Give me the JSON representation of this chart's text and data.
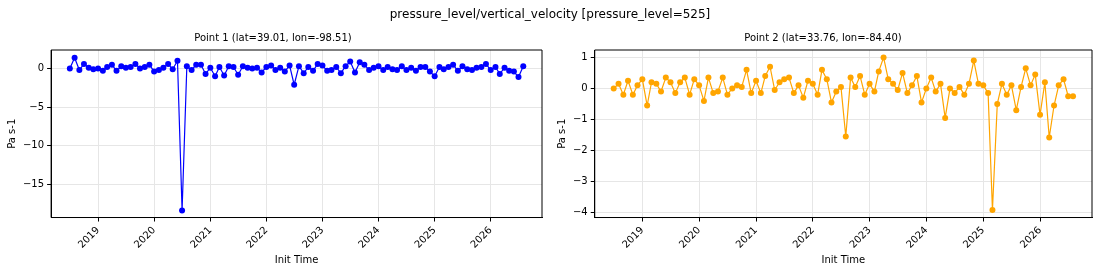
{
  "chart_data": [
    {
      "type": "line",
      "title": "Point 1 (lat=39.01, lon=-98.51)",
      "xlabel": "Init Time",
      "ylabel": "Pa s-1",
      "annotations": [
        "pressure_level/vertical_velocity [pressure_level=525]"
      ],
      "x": [
        "2018-07",
        "2018-08",
        "2018-09",
        "2018-10",
        "2018-11",
        "2018-12",
        "2019-01",
        "2019-02",
        "2019-03",
        "2019-04",
        "2019-05",
        "2019-06",
        "2019-07",
        "2019-08",
        "2019-09",
        "2019-10",
        "2019-11",
        "2019-12",
        "2020-01",
        "2020-02",
        "2020-03",
        "2020-04",
        "2020-05",
        "2020-06",
        "2020-07",
        "2020-08",
        "2020-09",
        "2020-10",
        "2020-11",
        "2020-12",
        "2021-01",
        "2021-02",
        "2021-03",
        "2021-04",
        "2021-05",
        "2021-06",
        "2021-07",
        "2021-08",
        "2021-09",
        "2021-10",
        "2021-11",
        "2021-12",
        "2022-01",
        "2022-02",
        "2022-03",
        "2022-04",
        "2022-05",
        "2022-06",
        "2022-07",
        "2022-08",
        "2022-09",
        "2022-10",
        "2022-11",
        "2022-12",
        "2023-01",
        "2023-02",
        "2023-03",
        "2023-04",
        "2023-05",
        "2023-06",
        "2023-07",
        "2023-08",
        "2023-09",
        "2023-10",
        "2023-11",
        "2023-12",
        "2024-01",
        "2024-02",
        "2024-03",
        "2024-04",
        "2024-05",
        "2024-06",
        "2024-07",
        "2024-08",
        "2024-09",
        "2024-10",
        "2024-11",
        "2024-12",
        "2025-01",
        "2025-02",
        "2025-03",
        "2025-04",
        "2025-05",
        "2025-06",
        "2025-07",
        "2025-08",
        "2025-09",
        "2025-10",
        "2025-11",
        "2025-12",
        "2026-01",
        "2026-02",
        "2026-03",
        "2026-04",
        "2026-05",
        "2026-06",
        "2026-07",
        "2026-08"
      ],
      "series": [
        {
          "color": "#0000ff",
          "values": [
            0,
            1.4,
            -0.2,
            0.6,
            0.1,
            -0.1,
            0.0,
            -0.3,
            0.2,
            0.5,
            -0.3,
            0.3,
            0.1,
            0.2,
            0.6,
            0.0,
            0.2,
            0.5,
            -0.4,
            -0.2,
            0.1,
            0.6,
            -0.1,
            1.0,
            -18.4,
            0.3,
            -0.2,
            0.5,
            0.5,
            -0.7,
            0.1,
            -1.0,
            0.2,
            -0.9,
            0.3,
            0.2,
            -0.8,
            0.3,
            0.1,
            0.0,
            0.1,
            -0.5,
            0.2,
            0.4,
            -0.2,
            0.1,
            -0.4,
            0.4,
            -2.1,
            0.3,
            -0.6,
            0.2,
            -0.3,
            0.6,
            0.4,
            -0.3,
            -0.2,
            0.2,
            -0.6,
            0.3,
            0.9,
            -0.5,
            0.8,
            0.5,
            -0.2,
            0.1,
            0.3,
            -0.2,
            0.2,
            -0.1,
            -0.2,
            0.3,
            -0.2,
            0.1,
            -0.3,
            0.2,
            0.2,
            -0.4,
            -1.0,
            0.2,
            -0.1,
            0.2,
            0.5,
            -0.3,
            0.3,
            -0.1,
            -0.2,
            0.1,
            0.2,
            0.6,
            -0.2,
            0.2,
            -0.7,
            0.1,
            -0.3,
            -0.4,
            -1.1,
            0.3
          ]
        }
      ],
      "xlim": [
        "2018-03",
        "2026-12"
      ],
      "xticks": [
        {
          "value": "2019-01",
          "label": "2019"
        },
        {
          "value": "2020-01",
          "label": "2020"
        },
        {
          "value": "2021-01",
          "label": "2021"
        },
        {
          "value": "2022-01",
          "label": "2022"
        },
        {
          "value": "2023-01",
          "label": "2023"
        },
        {
          "value": "2024-01",
          "label": "2024"
        },
        {
          "value": "2025-01",
          "label": "2025"
        },
        {
          "value": "2026-01",
          "label": "2026"
        }
      ],
      "ylim": [
        -19.3,
        2.4
      ],
      "yticks": [
        -15,
        -10,
        -5,
        0
      ],
      "grid": true,
      "legend": false,
      "marker": "circle",
      "line_style": "solid"
    },
    {
      "type": "line",
      "title": "Point 2 (lat=33.76, lon=-84.40)",
      "xlabel": "Init Time",
      "ylabel": "Pa s-1",
      "x": [
        "2018-07",
        "2018-08",
        "2018-09",
        "2018-10",
        "2018-11",
        "2018-12",
        "2019-01",
        "2019-02",
        "2019-03",
        "2019-04",
        "2019-05",
        "2019-06",
        "2019-07",
        "2019-08",
        "2019-09",
        "2019-10",
        "2019-11",
        "2019-12",
        "2020-01",
        "2020-02",
        "2020-03",
        "2020-04",
        "2020-05",
        "2020-06",
        "2020-07",
        "2020-08",
        "2020-09",
        "2020-10",
        "2020-11",
        "2020-12",
        "2021-01",
        "2021-02",
        "2021-03",
        "2021-04",
        "2021-05",
        "2021-06",
        "2021-07",
        "2021-08",
        "2021-09",
        "2021-10",
        "2021-11",
        "2021-12",
        "2022-01",
        "2022-02",
        "2022-03",
        "2022-04",
        "2022-05",
        "2022-06",
        "2022-07",
        "2022-08",
        "2022-09",
        "2022-10",
        "2022-11",
        "2022-12",
        "2023-01",
        "2023-02",
        "2023-03",
        "2023-04",
        "2023-05",
        "2023-06",
        "2023-07",
        "2023-08",
        "2023-09",
        "2023-10",
        "2023-11",
        "2023-12",
        "2024-01",
        "2024-02",
        "2024-03",
        "2024-04",
        "2024-05",
        "2024-06",
        "2024-07",
        "2024-08",
        "2024-09",
        "2024-10",
        "2024-11",
        "2024-12",
        "2025-01",
        "2025-02",
        "2025-03",
        "2025-04",
        "2025-05",
        "2025-06",
        "2025-07",
        "2025-08",
        "2025-09",
        "2025-10",
        "2025-11",
        "2025-12",
        "2026-01",
        "2026-02",
        "2026-03",
        "2026-04",
        "2026-05",
        "2026-06",
        "2026-07",
        "2026-08"
      ],
      "series": [
        {
          "color": "#ffa500",
          "values": [
            0,
            0.15,
            -0.2,
            0.25,
            -0.2,
            0.1,
            0.3,
            -0.55,
            0.2,
            0.15,
            -0.1,
            0.35,
            0.2,
            -0.15,
            0.2,
            0.35,
            -0.2,
            0.3,
            0.1,
            -0.4,
            0.35,
            -0.15,
            -0.1,
            0.35,
            -0.2,
            0.0,
            0.1,
            0.05,
            0.6,
            -0.15,
            0.25,
            -0.15,
            0.4,
            0.7,
            -0.05,
            0.2,
            0.3,
            0.35,
            -0.15,
            0.1,
            -0.3,
            0.25,
            0.15,
            -0.2,
            0.6,
            0.3,
            -0.45,
            -0.1,
            0.05,
            -1.55,
            0.35,
            0.05,
            0.4,
            -0.2,
            0.15,
            -0.1,
            0.55,
            1.0,
            0.3,
            0.15,
            -0.05,
            0.5,
            -0.15,
            0.1,
            0.4,
            -0.45,
            0.0,
            0.35,
            -0.1,
            0.15,
            -0.95,
            0.0,
            -0.15,
            0.05,
            -0.2,
            0.15,
            0.9,
            0.15,
            0.1,
            -0.15,
            -3.92,
            -0.5,
            0.15,
            -0.2,
            0.1,
            -0.7,
            0.05,
            0.65,
            0.1,
            0.45,
            -0.85,
            0.2,
            -1.58,
            -0.55,
            0.1,
            0.3,
            -0.25,
            -0.25
          ]
        }
      ],
      "xlim": [
        "2018-03",
        "2026-12"
      ],
      "xticks": [
        {
          "value": "2019-01",
          "label": "2019"
        },
        {
          "value": "2020-01",
          "label": "2020"
        },
        {
          "value": "2021-01",
          "label": "2021"
        },
        {
          "value": "2022-01",
          "label": "2022"
        },
        {
          "value": "2023-01",
          "label": "2023"
        },
        {
          "value": "2024-01",
          "label": "2024"
        },
        {
          "value": "2025-01",
          "label": "2025"
        },
        {
          "value": "2026-01",
          "label": "2026"
        }
      ],
      "ylim": [
        -4.16,
        1.24
      ],
      "yticks": [
        -4,
        -3,
        -2,
        -1,
        0,
        1
      ],
      "grid": true,
      "legend": false,
      "marker": "circle",
      "line_style": "solid"
    }
  ]
}
